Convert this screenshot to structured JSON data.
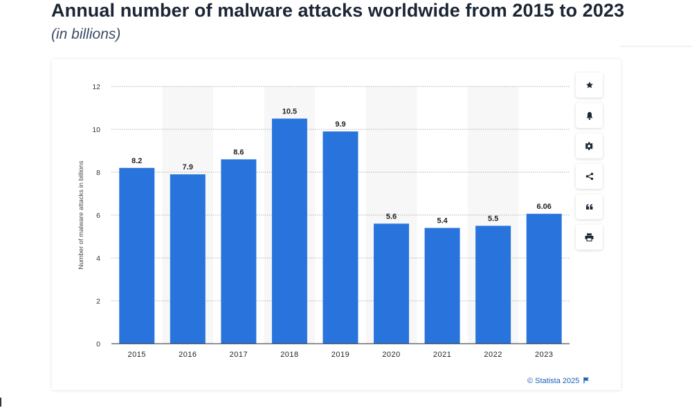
{
  "header": {
    "title": "Annual number of malware attacks worldwide from 2015 to 2023",
    "subtitle": "(in billions)"
  },
  "chart_data": {
    "type": "bar",
    "categories": [
      "2015",
      "2016",
      "2017",
      "2018",
      "2019",
      "2020",
      "2021",
      "2022",
      "2023"
    ],
    "values": [
      8.2,
      7.9,
      8.6,
      10.5,
      9.9,
      5.6,
      5.4,
      5.5,
      6.06
    ],
    "value_labels": [
      "8.2",
      "7.9",
      "8.6",
      "10.5",
      "9.9",
      "5.6",
      "5.4",
      "5.5",
      "6.06"
    ],
    "ylabel": "Number of malware attacks in billions",
    "xlabel": "",
    "ylim": [
      0,
      12
    ],
    "yticks": [
      "0",
      "2",
      "4",
      "6",
      "8",
      "10",
      "12"
    ],
    "grid": true,
    "bar_color": "#2874dc",
    "alt_band_color": "#f7f7f7"
  },
  "toolbar": {
    "items": [
      {
        "icon": "star-icon",
        "label": "Favorite"
      },
      {
        "icon": "bell-icon",
        "label": "Notifications"
      },
      {
        "icon": "gear-icon",
        "label": "Settings"
      },
      {
        "icon": "share-icon",
        "label": "Share"
      },
      {
        "icon": "quote-icon",
        "label": "Cite"
      },
      {
        "icon": "print-icon",
        "label": "Print"
      }
    ]
  },
  "footer": {
    "credit": "© Statista 2025"
  }
}
